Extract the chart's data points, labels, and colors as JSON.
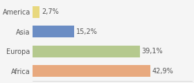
{
  "categories": [
    "America",
    "Asia",
    "Europa",
    "Africa"
  ],
  "values": [
    2.7,
    15.2,
    39.1,
    42.9
  ],
  "labels": [
    "2,7%",
    "15,2%",
    "39,1%",
    "42,9%"
  ],
  "bar_colors": [
    "#e8d87e",
    "#6b8dc4",
    "#b5c98e",
    "#e8a97e"
  ],
  "background_color": "#f5f5f5",
  "xlim": [
    0,
    58
  ],
  "label_fontsize": 7.0,
  "category_fontsize": 7.0
}
